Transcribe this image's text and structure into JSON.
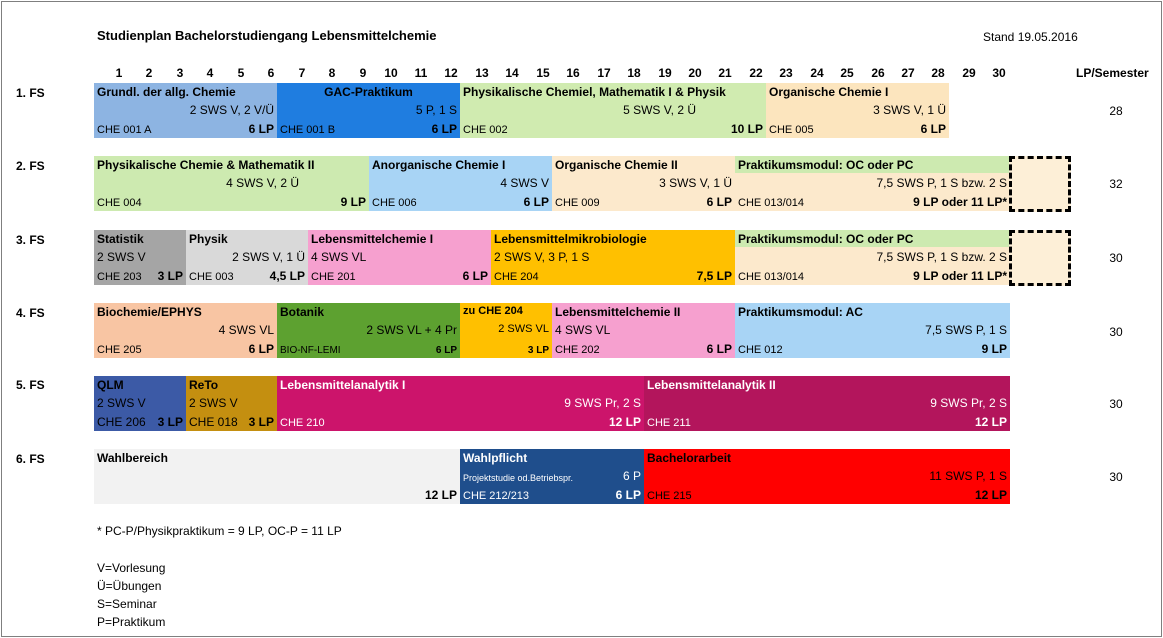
{
  "title": "Studienplan Bachelorstudiengang Lebensmittelchemie",
  "stand": "Stand 19.05.2016",
  "columns": [
    "1",
    "2",
    "3",
    "4",
    "5",
    "6",
    "7",
    "8",
    "9",
    "10",
    "11",
    "12",
    "13",
    "14",
    "15",
    "16",
    "17",
    "18",
    "19",
    "20",
    "21",
    "22",
    "23",
    "24",
    "25",
    "26",
    "27",
    "28",
    "29",
    "30"
  ],
  "lp_header": "LP/Semester",
  "semesters": [
    {
      "label": "1. FS",
      "lp": "28"
    },
    {
      "label": "2. FS",
      "lp": "32"
    },
    {
      "label": "3. FS",
      "lp": "30"
    },
    {
      "label": "4. FS",
      "lp": "30"
    },
    {
      "label": "5. FS",
      "lp": "30"
    },
    {
      "label": "6. FS",
      "lp": "30"
    }
  ],
  "modules": {
    "s1": [
      {
        "title": "Grundl. der allg. Chemie",
        "detail": "2 SWS V, 2 V/Ü",
        "code": "CHE 001 A",
        "lp": "6 LP",
        "color": "#8db4e2"
      },
      {
        "title": "GAC-Praktikum",
        "detail": "5 P, 1 S",
        "code": "CHE 001 B",
        "lp": "6 LP",
        "color": "#1f7de0"
      },
      {
        "title": "Physikalische Chemiel, Mathematik I & Physik",
        "detail": "5 SWS V, 2 Ü",
        "code": "CHE 002",
        "lp": "10 LP",
        "color": "#d0ebb0"
      },
      {
        "title": "Organische Chemie I",
        "detail": "3 SWS V, 1 Ü",
        "code": "CHE 005",
        "lp": "6 LP",
        "color": "#fce5be"
      }
    ],
    "s2": [
      {
        "title": "Physikalische Chemie & Mathematik II",
        "detail": "4 SWS V, 2 Ü",
        "code": "CHE 004",
        "lp": "9 LP",
        "color": "#cdeab0"
      },
      {
        "title": "Anorganische Chemie I",
        "detail": "4 SWS V",
        "code": "CHE 006",
        "lp": "6 LP",
        "color": "#a8d4f5"
      },
      {
        "title": "Organische Chemie II",
        "detail": "3 SWS V, 1 Ü",
        "code": "CHE 009",
        "lp": "6 LP",
        "color": "#fce9cc"
      },
      {
        "title": "Praktikumsmodul: OC oder PC",
        "detail": "7,5 SWS P, 1 S bzw. 2 S",
        "code": "CHE 013/014",
        "lp": "9 LP oder 11 LP*",
        "color_top": "#cdeab0",
        "color_bottom": "#fce9cc"
      }
    ],
    "s3": [
      {
        "title": "Statistik",
        "detail": "2 SWS V",
        "code": "CHE 203",
        "lp": "3 LP",
        "color": "#a5a5a5"
      },
      {
        "title": "Physik",
        "detail": "2 SWS V, 1 Ü",
        "code": "CHE 003",
        "lp": "4,5 LP",
        "color": "#d9d9d9"
      },
      {
        "title": "Lebensmittelchemie I",
        "detail": "4 SWS VL",
        "code": "CHE 201",
        "lp": "6 LP",
        "color": "#f6a0cf"
      },
      {
        "title": "Lebensmittelmikrobiologie",
        "detail": "2 SWS V, 3 P, 1 S",
        "code": "CHE 204",
        "lp": "7,5 LP",
        "color": "#ffc000"
      },
      {
        "title": "Praktikumsmodul: OC oder PC",
        "detail": "7,5 SWS P, 1 S bzw. 2 S",
        "code": "CHE 013/014",
        "lp": "9 LP oder 11 LP*",
        "color_top": "#cdeab0",
        "color_bottom": "#fce9cc"
      }
    ],
    "s4": [
      {
        "title": "Biochemie/EPHYS",
        "detail": "4 SWS VL",
        "code": "CHE 205",
        "lp": "6 LP",
        "color": "#f8c5a3"
      },
      {
        "title": "Botanik",
        "detail": "2 SWS VL + 4 Pr",
        "code": "BIO-NF-LEMI",
        "lp": "6 LP",
        "color": "#5da130"
      },
      {
        "title": "zu CHE 204",
        "detail": "2 SWS VL",
        "code": "",
        "lp": "3 LP",
        "color": "#ffc000"
      },
      {
        "title": "Lebensmittelchemie II",
        "detail": "4 SWS VL",
        "code": "CHE 202",
        "lp": "6 LP",
        "color": "#f6a0cf"
      },
      {
        "title": "Praktikumsmodul: AC",
        "detail": "7,5 SWS P, 1 S",
        "code": "CHE 012",
        "lp": "9 LP",
        "color": "#a8d4f5"
      }
    ],
    "s5": [
      {
        "title": "QLM",
        "detail": "2 SWS V",
        "code": "CHE 206",
        "lp": "3 LP",
        "color": "#3c5aa6"
      },
      {
        "title": "ReTo",
        "detail": "2 SWS V",
        "code": "CHE 018",
        "lp": "3 LP",
        "color": "#c48f10"
      },
      {
        "title": "Lebensmittelanalytik I",
        "detail": "9 SWS Pr, 2 S",
        "code": "CHE 210",
        "lp": "12 LP",
        "color": "#cc146b"
      },
      {
        "title": "Lebensmittelanalytik II",
        "detail": "9 SWS Pr, 2 S",
        "code": "CHE 211",
        "lp": "12 LP",
        "color": "#b3155c"
      }
    ],
    "s6": [
      {
        "title": "Wahlbereich",
        "lp": "12 LP",
        "color": "#f2f2f2"
      },
      {
        "title": "Wahlpflicht",
        "detail": "Projektstudie od.Betriebspr.",
        "detail_lp": "6 P",
        "code": "CHE 212/213",
        "lp": "6 LP",
        "color": "#1f4e8c"
      },
      {
        "title": "Bachelorarbeit",
        "detail": "11 SWS P, 1 S",
        "code": "CHE 215",
        "lp": "12 LP",
        "color": "#ff0000"
      }
    ]
  },
  "footnote": "* PC-P/Physikpraktikum = 9 LP, OC-P = 11 LP",
  "legend": [
    "V=Vorlesung",
    "Ü=Übungen",
    "S=Seminar",
    "P=Praktikum"
  ]
}
